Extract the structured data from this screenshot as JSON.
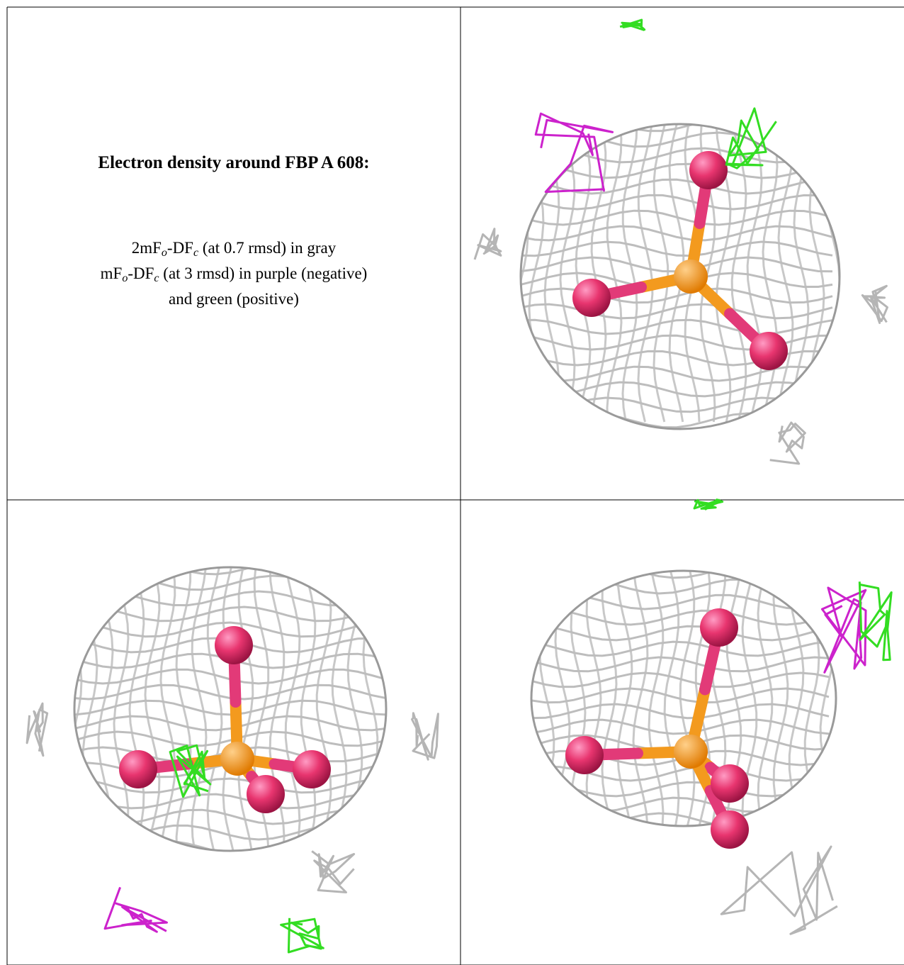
{
  "title": "Electron density around FBP A 608:",
  "legend_lines": [
    [
      "2mF",
      "o",
      "-DF",
      "c",
      " (at 0.7 rmsd) in gray"
    ],
    [
      "mF",
      "o",
      "-DF",
      "c",
      " (at 3 rmsd) in purple (negative)"
    ],
    [
      "and green (positive)"
    ]
  ]
}
